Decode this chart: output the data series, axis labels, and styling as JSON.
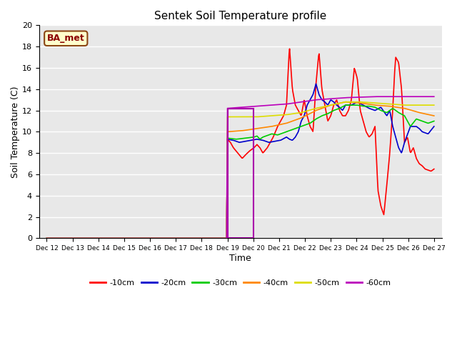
{
  "title": "Sentek Soil Temperature profile",
  "xlabel": "Time",
  "ylabel": "Soil Temperature (C)",
  "ylim": [
    0,
    20
  ],
  "x_tick_labels": [
    "Dec 12",
    "Dec 13",
    "Dec 14",
    "Dec 15",
    "Dec 16",
    "Dec 17",
    "Dec 18",
    "Dec 19",
    "Dec 20",
    "Dec 21",
    "Dec 22",
    "Dec 23",
    "Dec 24",
    "Dec 25",
    "Dec 26",
    "Dec 27"
  ],
  "annotation_label": "BA_met",
  "annotation_box_color": "#ffffcc",
  "annotation_box_edge": "#8B4513",
  "annotation_text_color": "#8B0000",
  "bg_color": "#e8e8e8",
  "grid_color": "white",
  "colors": {
    "-10cm": "#ff0000",
    "-20cm": "#0000cc",
    "-30cm": "#00cc00",
    "-40cm": "#ff8800",
    "-50cm": "#dddd00",
    "-60cm": "#bb00bb"
  },
  "purple_rect_color": "#aa00aa",
  "series_10cm_t": [
    0,
    0.1,
    0.2,
    0.35,
    0.5,
    0.6,
    0.75,
    0.9,
    1.0,
    1.1,
    1.2,
    1.35,
    1.45,
    1.55,
    1.7,
    1.8,
    1.9,
    2.0,
    2.1,
    2.2,
    2.3,
    2.4,
    2.5,
    2.6,
    2.7,
    2.8,
    2.9,
    3.0,
    3.1,
    3.2,
    3.3,
    3.4,
    3.5,
    3.6,
    3.7,
    3.8,
    3.9,
    4.0,
    4.1,
    4.2,
    4.3,
    4.4,
    4.5,
    4.6,
    4.7,
    4.8,
    4.9,
    5.0,
    5.1,
    5.2,
    5.3,
    5.4,
    5.5,
    5.6,
    5.65,
    5.7,
    5.8,
    5.9,
    6.0,
    6.1,
    6.2,
    6.3,
    6.4,
    6.5,
    6.6,
    6.7,
    6.8,
    6.9,
    7.0
  ],
  "series_10cm_v": [
    9.3,
    9.0,
    8.5,
    8.0,
    7.5,
    7.8,
    8.2,
    8.5,
    8.8,
    8.5,
    8.0,
    8.5,
    9.0,
    9.5,
    10.5,
    11.0,
    11.5,
    12.5,
    18.0,
    14.0,
    12.5,
    12.0,
    11.5,
    13.0,
    11.5,
    10.5,
    10.0,
    14.5,
    17.5,
    14.0,
    12.5,
    11.0,
    11.5,
    12.5,
    13.0,
    12.0,
    11.5,
    11.5,
    12.0,
    13.0,
    16.0,
    15.0,
    12.0,
    11.0,
    10.0,
    9.5,
    9.8,
    10.5,
    4.5,
    3.0,
    2.2,
    5.0,
    8.0,
    12.0,
    15.0,
    17.0,
    16.5,
    14.0,
    9.0,
    9.5,
    8.0,
    8.5,
    7.5,
    7.0,
    6.8,
    6.5,
    6.4,
    6.3,
    6.5
  ],
  "series_20cm_t": [
    0,
    0.2,
    0.4,
    0.6,
    0.8,
    1.0,
    1.2,
    1.4,
    1.6,
    1.8,
    2.0,
    2.1,
    2.2,
    2.3,
    2.4,
    2.5,
    2.6,
    2.7,
    2.8,
    2.9,
    3.0,
    3.1,
    3.2,
    3.3,
    3.4,
    3.5,
    3.6,
    3.7,
    3.8,
    3.9,
    4.0,
    4.2,
    4.4,
    4.6,
    4.8,
    5.0,
    5.2,
    5.4,
    5.5,
    5.6,
    5.7,
    5.8,
    5.9,
    6.0,
    6.2,
    6.4,
    6.5,
    6.6,
    6.8,
    7.0
  ],
  "series_20cm_v": [
    9.3,
    9.2,
    9.0,
    9.1,
    9.2,
    9.3,
    9.2,
    9.0,
    9.1,
    9.2,
    9.5,
    9.3,
    9.2,
    9.5,
    10.0,
    11.0,
    11.5,
    12.5,
    13.0,
    13.5,
    14.5,
    13.5,
    13.0,
    12.8,
    12.5,
    13.0,
    12.8,
    12.5,
    12.3,
    12.0,
    12.5,
    12.5,
    12.8,
    12.5,
    12.2,
    12.0,
    12.3,
    11.5,
    12.0,
    10.5,
    9.5,
    8.5,
    8.0,
    9.0,
    10.5,
    10.5,
    10.3,
    10.0,
    9.8,
    10.5
  ],
  "series_30cm_t": [
    0,
    0.3,
    0.6,
    0.9,
    1.0,
    1.1,
    1.2,
    1.3,
    1.5,
    1.7,
    2.0,
    2.2,
    2.4,
    2.6,
    2.8,
    3.0,
    3.2,
    3.4,
    3.6,
    3.8,
    4.0,
    4.2,
    4.4,
    4.6,
    4.8,
    5.0,
    5.2,
    5.4,
    5.6,
    5.8,
    6.0,
    6.2,
    6.4,
    6.6,
    6.8,
    7.0
  ],
  "series_30cm_v": [
    9.4,
    9.3,
    9.4,
    9.5,
    9.6,
    9.3,
    9.5,
    9.6,
    9.8,
    9.7,
    10.0,
    10.2,
    10.4,
    10.6,
    10.8,
    11.2,
    11.5,
    11.7,
    12.0,
    12.2,
    12.5,
    12.5,
    12.5,
    12.4,
    12.4,
    12.3,
    12.0,
    11.8,
    12.2,
    11.8,
    11.5,
    10.5,
    11.2,
    11.0,
    10.8,
    11.0
  ],
  "series_40cm_t": [
    0,
    0.5,
    1.0,
    1.5,
    2.0,
    2.5,
    3.0,
    3.5,
    4.0,
    4.5,
    5.0,
    5.5,
    6.0,
    6.5,
    7.0
  ],
  "series_40cm_v": [
    10.0,
    10.1,
    10.3,
    10.5,
    10.8,
    11.3,
    12.0,
    12.5,
    12.8,
    12.7,
    12.5,
    12.4,
    12.2,
    11.8,
    11.5
  ],
  "series_50cm_t": [
    0,
    0.2,
    0.5,
    1.0,
    1.5,
    2.0,
    2.5,
    3.0,
    3.5,
    4.0,
    4.5,
    5.0,
    5.5,
    6.0,
    6.5,
    7.0
  ],
  "series_50cm_v": [
    11.4,
    11.4,
    11.4,
    11.4,
    11.5,
    11.6,
    11.8,
    12.2,
    12.5,
    12.8,
    12.8,
    12.7,
    12.6,
    12.5,
    12.5,
    12.5
  ],
  "series_60cm_t": [
    0,
    0.5,
    1.0,
    1.5,
    2.0,
    2.5,
    3.0,
    3.5,
    4.0,
    4.5,
    5.0,
    5.5,
    6.0,
    6.5,
    7.0
  ],
  "series_60cm_v": [
    12.2,
    12.3,
    12.4,
    12.5,
    12.6,
    12.8,
    13.0,
    13.1,
    13.2,
    13.25,
    13.3,
    13.3,
    13.3,
    13.3,
    13.3
  ]
}
